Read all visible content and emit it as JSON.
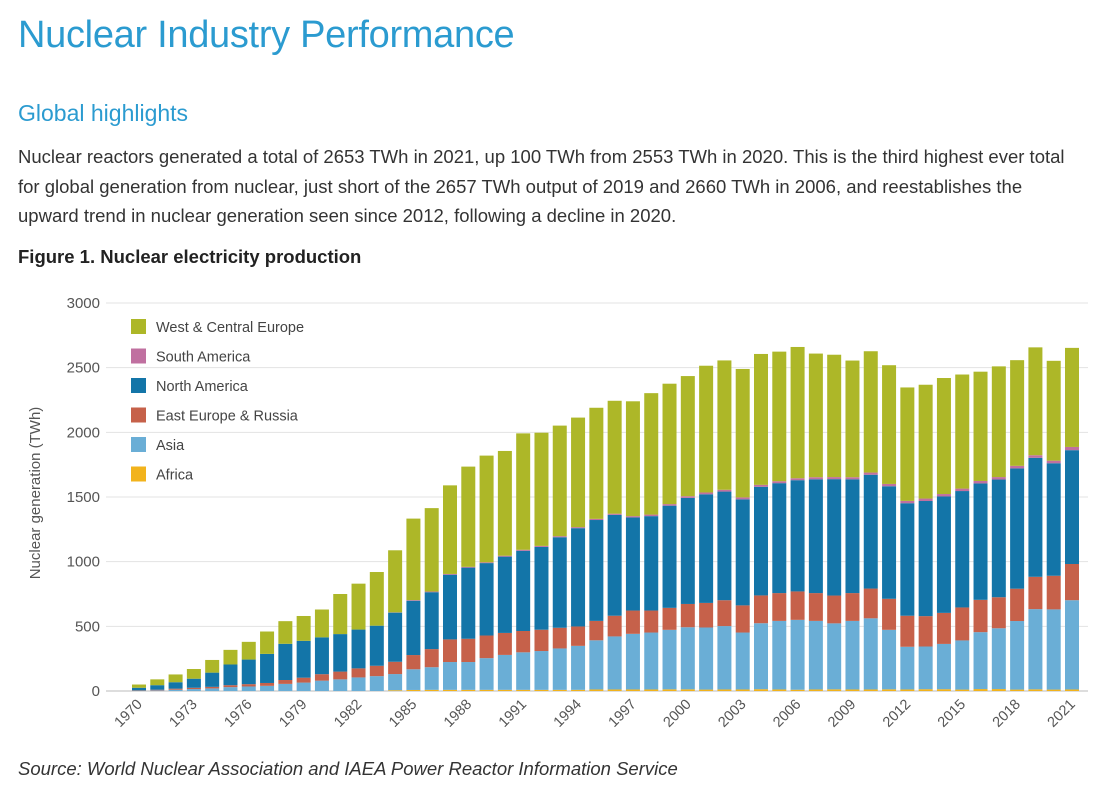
{
  "page": {
    "title": "Nuclear Industry Performance",
    "subtitle": "Global highlights",
    "paragraph": "Nuclear reactors generated a total of 2653 TWh in 2021, up 100 TWh from 2553 TWh in 2020. This is the third highest ever total for global generation from nuclear, just short of the 2657 TWh output of 2019 and 2660 TWh in 2006, and reestablishes the upward trend in nuclear generation seen since 2012, following a decline in 2020.",
    "figure_title": "Figure 1. Nuclear electricity production",
    "source": "Source: World Nuclear Association and IAEA Power Reactor Information Service"
  },
  "chart_data": {
    "type": "bar",
    "stacked": true,
    "ylabel": "Nuclear generation (TWh)",
    "ylim": [
      0,
      3000
    ],
    "yticks": [
      0,
      500,
      1000,
      1500,
      2000,
      2500,
      3000
    ],
    "grid": true,
    "legend_position": "top-left",
    "categories": [
      "1970",
      "1971",
      "1972",
      "1973",
      "1974",
      "1975",
      "1976",
      "1977",
      "1978",
      "1979",
      "1980",
      "1981",
      "1982",
      "1983",
      "1984",
      "1985",
      "1986",
      "1987",
      "1988",
      "1989",
      "1990",
      "1991",
      "1992",
      "1993",
      "1994",
      "1995",
      "1996",
      "1997",
      "1998",
      "1999",
      "2000",
      "2001",
      "2002",
      "2003",
      "2004",
      "2005",
      "2006",
      "2007",
      "2008",
      "2009",
      "2010",
      "2011",
      "2012",
      "2013",
      "2014",
      "2015",
      "2016",
      "2017",
      "2018",
      "2019",
      "2020",
      "2021"
    ],
    "tick_labels": [
      "1970",
      "1973",
      "1976",
      "1979",
      "1982",
      "1985",
      "1988",
      "1991",
      "1994",
      "1997",
      "2000",
      "2003",
      "2006",
      "2009",
      "2012",
      "2015",
      "2018",
      "2021"
    ],
    "series": [
      {
        "name": "Africa",
        "color": "#f2b31c",
        "values": [
          0,
          0,
          0,
          0,
          0,
          0,
          0,
          0,
          0,
          0,
          0,
          0,
          0,
          0,
          6,
          8,
          9,
          9,
          9,
          9,
          9,
          9,
          9,
          9,
          9,
          12,
          12,
          12,
          12,
          13,
          13,
          11,
          12,
          12,
          14,
          12,
          10,
          12,
          13,
          12,
          12,
          13,
          12,
          14,
          14,
          11,
          15,
          15,
          11,
          13,
          11,
          12
        ]
      },
      {
        "name": "Asia",
        "color": "#6aaed6",
        "values": [
          2,
          5,
          10,
          15,
          20,
          30,
          35,
          40,
          55,
          65,
          80,
          90,
          105,
          115,
          125,
          160,
          175,
          215,
          215,
          245,
          270,
          290,
          300,
          320,
          340,
          380,
          410,
          430,
          440,
          460,
          480,
          480,
          490,
          440,
          510,
          530,
          540,
          530,
          510,
          530,
          550,
          460,
          330,
          330,
          350,
          380,
          440,
          470,
          530,
          620,
          620,
          690
        ]
      },
      {
        "name": "East Europe & Russia",
        "color": "#c6614a",
        "values": [
          3,
          5,
          8,
          10,
          12,
          15,
          18,
          22,
          30,
          38,
          50,
          60,
          70,
          80,
          95,
          110,
          140,
          175,
          180,
          175,
          170,
          165,
          165,
          160,
          150,
          150,
          160,
          180,
          170,
          170,
          180,
          190,
          200,
          210,
          215,
          215,
          220,
          215,
          215,
          215,
          230,
          240,
          240,
          235,
          240,
          255,
          250,
          240,
          250,
          250,
          260,
          280
        ]
      },
      {
        "name": "North America",
        "color": "#1375a8",
        "values": [
          20,
          35,
          50,
          70,
          110,
          160,
          190,
          225,
          280,
          285,
          285,
          290,
          300,
          310,
          380,
          420,
          440,
          500,
          550,
          560,
          590,
          620,
          640,
          700,
          760,
          780,
          780,
          720,
          730,
          790,
          820,
          840,
          840,
          820,
          840,
          850,
          860,
          880,
          900,
          880,
          880,
          870,
          870,
          890,
          900,
          900,
          900,
          910,
          930,
          920,
          870,
          880
        ]
      },
      {
        "name": "South America",
        "color": "#c070a0",
        "values": [
          0,
          0,
          0,
          0,
          0,
          0,
          0,
          0,
          0,
          0,
          0,
          0,
          0,
          0,
          2,
          5,
          5,
          6,
          6,
          6,
          7,
          8,
          8,
          8,
          8,
          9,
          9,
          10,
          12,
          12,
          13,
          14,
          14,
          15,
          15,
          15,
          15,
          16,
          16,
          16,
          17,
          18,
          18,
          19,
          19,
          19,
          19,
          19,
          20,
          20,
          20,
          25
        ]
      },
      {
        "name": "West & Central Europe",
        "color": "#adb728",
        "values": [
          25,
          45,
          60,
          75,
          98,
          113,
          137,
          173,
          175,
          192,
          215,
          310,
          355,
          415,
          480,
          630,
          645,
          685,
          775,
          825,
          810,
          900,
          875,
          855,
          847,
          859,
          873,
          888,
          939,
          931,
          929,
          980,
          1000,
          993,
          1012,
          1002,
          1015,
          956,
          946,
          902,
          938,
          918,
          877,
          880,
          897,
          882,
          845,
          856,
          817,
          834,
          772,
          766
        ]
      }
    ]
  }
}
